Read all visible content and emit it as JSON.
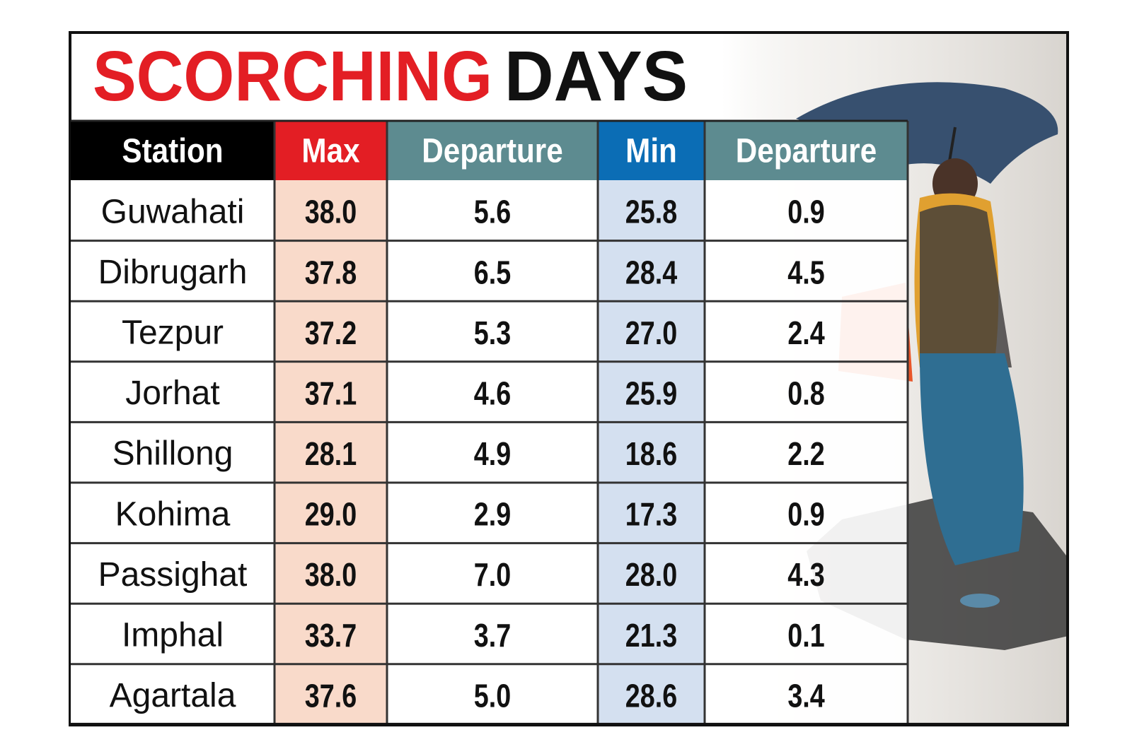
{
  "header": {
    "title": [
      "SCORCHING",
      "DAYS"
    ]
  },
  "table": {
    "columns": [
      "Station",
      "Max",
      "Departure",
      "Min",
      "Departure"
    ],
    "rows": [
      [
        "Guwahati",
        "38.0",
        "5.6",
        "25.8",
        "0.9"
      ],
      [
        "Dibrugarh",
        "37.8",
        "6.5",
        "28.4",
        "4.5"
      ],
      [
        "Tezpur",
        "37.2",
        "5.3",
        "27.0",
        "2.4"
      ],
      [
        "Jorhat",
        "37.1",
        "4.6",
        "25.9",
        "0.8"
      ],
      [
        "Shillong",
        "28.1",
        "4.9",
        "18.6",
        "2.2"
      ],
      [
        "Kohima",
        "29.0",
        "2.9",
        "17.3",
        "0.9"
      ],
      [
        "Passighat",
        "38.0",
        "7.0",
        "28.0",
        "4.3"
      ],
      [
        "Imphal",
        "33.7",
        "3.7",
        "21.3",
        "0.1"
      ],
      [
        "Agartala",
        "37.6",
        "5.0",
        "28.6",
        "3.4"
      ]
    ]
  }
}
